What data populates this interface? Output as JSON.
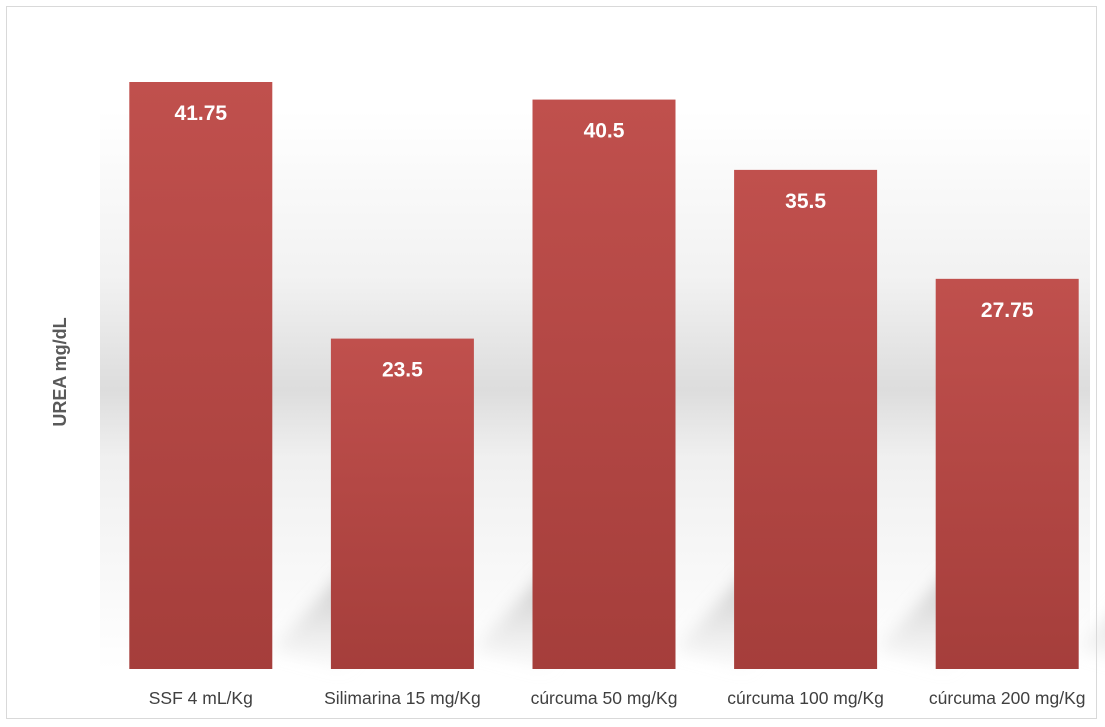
{
  "chart_data": {
    "type": "bar",
    "title": "",
    "xlabel": "",
    "ylabel": "UREA mg/dL",
    "categories": [
      "SSF 4 mL/Kg",
      "Silimarina 15 mg/Kg",
      "cúrcuma 50 mg/Kg",
      "cúrcuma 100 mg/Kg",
      "cúrcuma 200 mg/Kg"
    ],
    "values": [
      41.75,
      23.5,
      40.5,
      35.5,
      27.75
    ],
    "data_labels": [
      "41.75",
      "23.5",
      "40.5",
      "35.5",
      "27.75"
    ],
    "ylim": [
      0,
      41.75
    ],
    "grid": false,
    "legend": "none",
    "bar_color_top": "#c0504d",
    "bar_color_bottom": "#a53e3b"
  }
}
